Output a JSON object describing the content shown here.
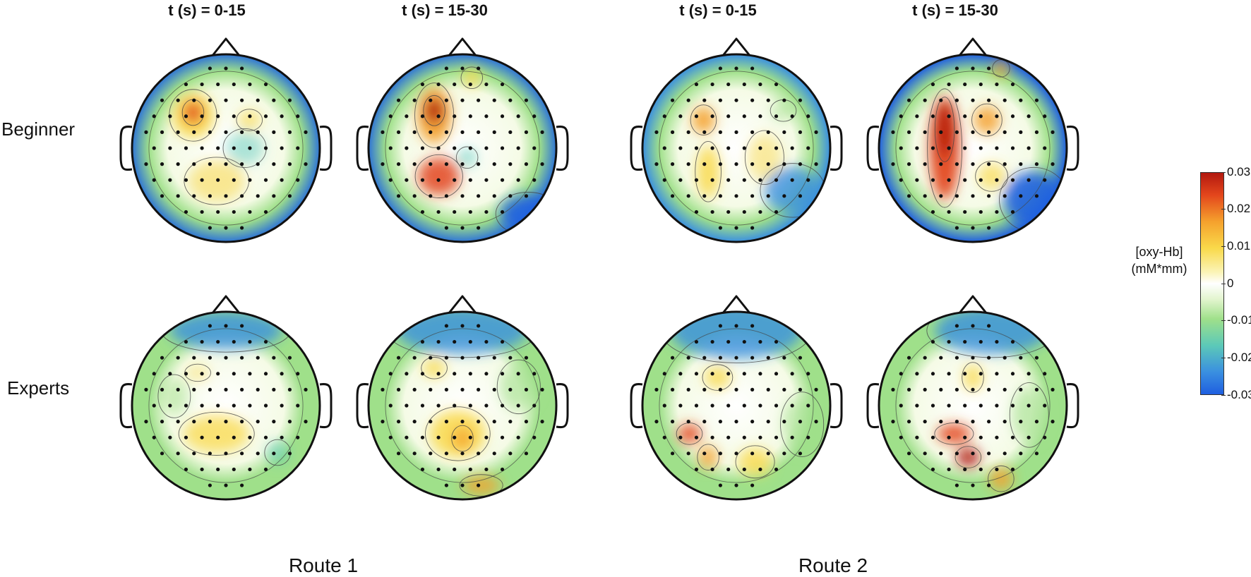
{
  "columns": [
    {
      "title": "t (s) = 0-15"
    },
    {
      "title": "t (s) = 15-30"
    },
    {
      "title": "t (s) = 0-15"
    },
    {
      "title": "t (s) = 15-30"
    }
  ],
  "rows": [
    {
      "label": "Beginner"
    },
    {
      "label": "Experts"
    }
  ],
  "routes": [
    {
      "label": "Route 1"
    },
    {
      "label": "Route 2"
    }
  ],
  "colorbar": {
    "label_line1": "[oxy-Hb]",
    "label_line2": "(mM*mm)",
    "ticks": [
      "0.03",
      "0.02",
      "0.01",
      "0",
      "-0.01",
      "-0.02",
      "-0.03"
    ],
    "colors": [
      "#b2180f",
      "#f5a12d",
      "#f9d94a",
      "#ffffff",
      "#9fe08a",
      "#5cc9b8",
      "#1f5fe0"
    ]
  }
}
